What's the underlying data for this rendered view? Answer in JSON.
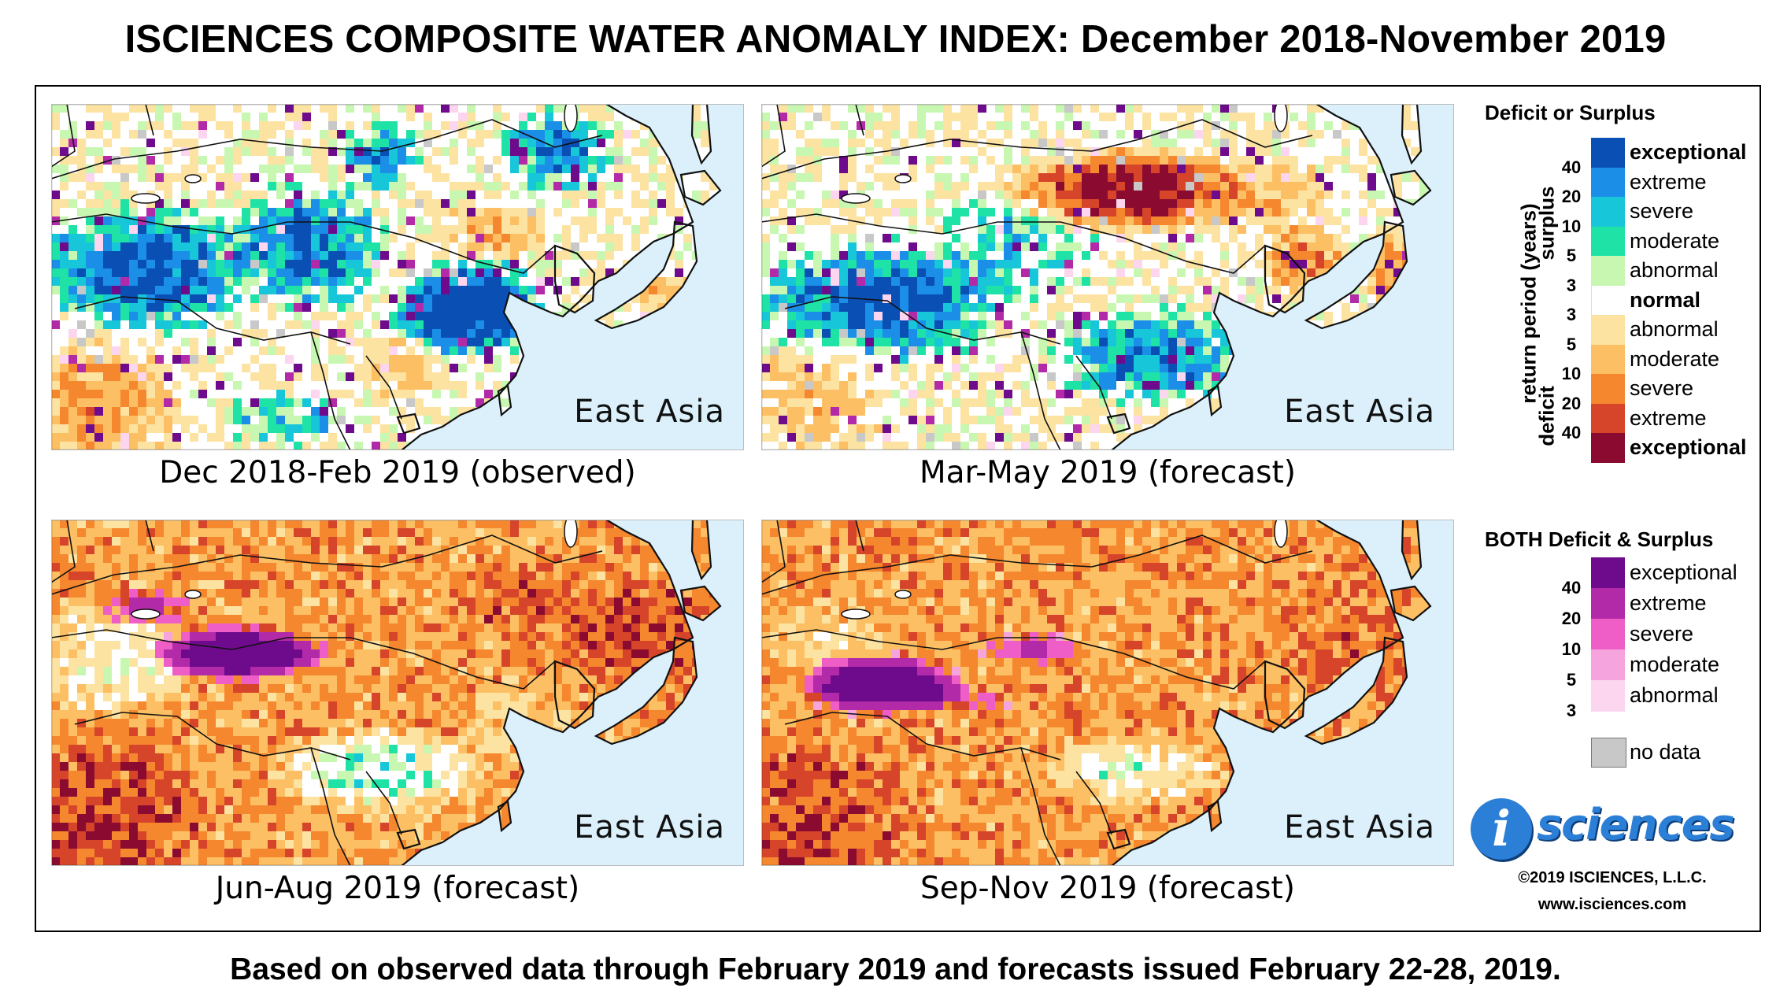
{
  "title": "ISCIENCES COMPOSITE WATER ANOMALY INDEX: December 2018-November 2019",
  "region_label": "East Asia",
  "panels": [
    {
      "caption": "Dec 2018-Feb 2019 (observed)",
      "mode": "wet"
    },
    {
      "caption": "Mar-May 2019 (forecast)",
      "mode": "mixed"
    },
    {
      "caption": "Jun-Aug 2019 (forecast)",
      "mode": "dry"
    },
    {
      "caption": "Sep-Nov 2019 (forecast)",
      "mode": "dry2"
    }
  ],
  "legend": {
    "title": "Deficit or Surplus",
    "axis_label": "return period (years)",
    "surplus_label": "surplus",
    "deficit_label": "deficit",
    "classes": [
      {
        "label": "exceptional",
        "color": "#0a4fb4",
        "bold": true
      },
      {
        "label": "extreme",
        "color": "#1b8ee8",
        "bold": false
      },
      {
        "label": "severe",
        "color": "#17c6d8",
        "bold": false
      },
      {
        "label": "moderate",
        "color": "#1fe3a6",
        "bold": false
      },
      {
        "label": "abnormal",
        "color": "#c8f7b2",
        "bold": false
      },
      {
        "label": "normal",
        "color": "#ffffff",
        "bold": true
      },
      {
        "label": "abnormal",
        "color": "#fde3a2",
        "bold": false
      },
      {
        "label": "moderate",
        "color": "#fdbf63",
        "bold": false
      },
      {
        "label": "severe",
        "color": "#f5872e",
        "bold": false
      },
      {
        "label": "extreme",
        "color": "#d6452a",
        "bold": false
      },
      {
        "label": "exceptional",
        "color": "#8b0b30",
        "bold": true
      }
    ],
    "surplus_ticks": [
      "40",
      "20",
      "10",
      "5",
      "3"
    ],
    "deficit_ticks": [
      "3",
      "5",
      "10",
      "20",
      "40"
    ],
    "both_title": "BOTH Deficit & Surplus",
    "both_classes": [
      {
        "label": "exceptional",
        "color": "#6e0a8c"
      },
      {
        "label": "extreme",
        "color": "#b32aa8"
      },
      {
        "label": "severe",
        "color": "#ee5ec6"
      },
      {
        "label": "moderate",
        "color": "#f6a4de"
      },
      {
        "label": "abnormal",
        "color": "#fbd6ee"
      }
    ],
    "both_ticks": [
      "40",
      "20",
      "10",
      "5",
      "3"
    ],
    "no_data_label": "no data",
    "no_data_color": "#c8c8c8"
  },
  "ocean_color": "#dcf0fb",
  "logo": {
    "letter": "i",
    "word": "sciences"
  },
  "copyright": "©2019 ISCIENCES, L.L.C.",
  "website": "www.isciences.com",
  "footer": "Based on observed data through February 2019 and forecasts issued February 22-28, 2019."
}
